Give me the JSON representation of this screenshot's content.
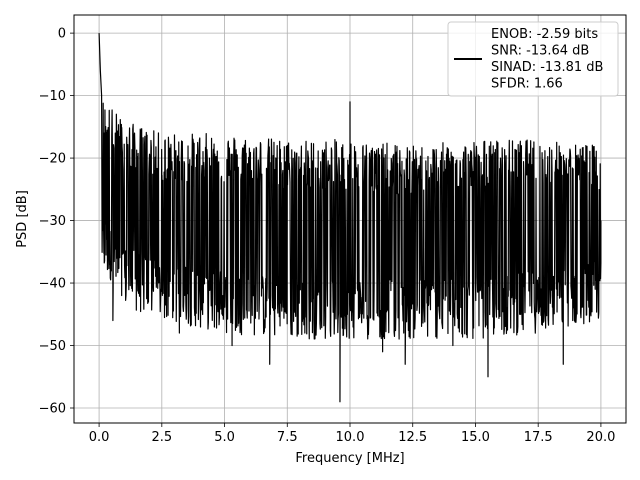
{
  "chart_data": {
    "type": "line",
    "xlabel": "Frequency [MHz]",
    "ylabel": "PSD [dB]",
    "xlim": [
      -1.0,
      21.0
    ],
    "ylim": [
      -62.4,
      2.9
    ],
    "x_ticks": [
      0.0,
      2.5,
      5.0,
      7.5,
      10.0,
      12.5,
      15.0,
      17.5,
      20.0
    ],
    "x_tick_labels": [
      "0.0",
      "2.5",
      "5.0",
      "7.5",
      "10.0",
      "12.5",
      "15.0",
      "17.5",
      "20.0"
    ],
    "y_ticks": [
      0,
      -10,
      -20,
      -30,
      -40,
      -50,
      -60
    ],
    "y_tick_labels": [
      "0",
      "−10",
      "−20",
      "−30",
      "−40",
      "−50",
      "−60"
    ],
    "grid": true,
    "legend_position": "top-right",
    "legend_lines": [
      "ENOB: -2.59 bits",
      "SNR: -13.64 dB",
      "SINAD: -13.81 dB",
      "SFDR: 1.66"
    ],
    "series": [
      {
        "color": "#000000",
        "description_points": {
          "x": [
            0.0,
            0.05,
            0.1,
            0.2,
            0.3,
            0.5,
            0.55,
            0.9,
            1.0,
            1.5,
            2.5,
            3.2,
            4.4,
            5.3,
            5.7,
            6.8,
            7.5,
            8.2,
            9.0,
            9.6,
            10.0,
            11.3,
            12.2,
            14.1,
            15.5,
            16.0,
            18.5,
            19.4,
            20.0
          ],
          "y": [
            0.0,
            -6.0,
            -10.0,
            -16.0,
            -33.0,
            -25.0,
            -46.0,
            -42.0,
            -20.0,
            -38.0,
            -23.0,
            -48.0,
            -20.0,
            -50.0,
            -22.0,
            -53.0,
            -18.0,
            -48.0,
            -42.0,
            -59.0,
            -11.0,
            -51.0,
            -53.0,
            -50.0,
            -55.0,
            -20.0,
            -53.0,
            -18.0,
            -30.0
          ]
        },
        "envelope": {
          "x": [
            0.1,
            1.0,
            2.5,
            5.0,
            7.5,
            10.0,
            12.5,
            15.0,
            17.5,
            20.0
          ],
          "upper": [
            -12,
            -16,
            -18,
            -18,
            -19,
            -19,
            -20,
            -19,
            -19,
            -20
          ],
          "lower": [
            -34,
            -40,
            -42,
            -44,
            -45,
            -45,
            -45,
            -45,
            -44,
            -42
          ]
        },
        "n_points": 1400
      }
    ]
  }
}
